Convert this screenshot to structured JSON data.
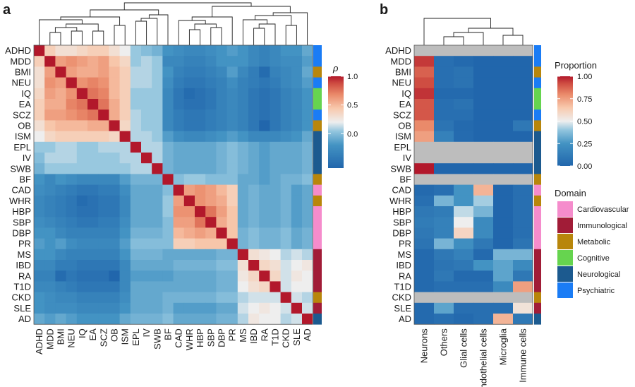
{
  "panels": {
    "a": "a",
    "b": "b"
  },
  "chart_data": [
    {
      "type": "heatmap",
      "panel": "a",
      "traits": [
        "ADHD",
        "MDD",
        "BMI",
        "NEU",
        "IQ",
        "EA",
        "SCZ",
        "OB",
        "ISM",
        "EPL",
        "IV",
        "SWB",
        "BF",
        "CAD",
        "WHR",
        "HBP",
        "SBP",
        "DBP",
        "PR",
        "MS",
        "IBD",
        "RA",
        "T1D",
        "CKD",
        "SLE",
        "AD"
      ],
      "values": [
        [
          1.0,
          0.4,
          0.3,
          0.3,
          0.35,
          0.4,
          0.4,
          0.3,
          0.2,
          0.05,
          0.0,
          -0.05,
          -0.2,
          -0.25,
          -0.3,
          -0.3,
          -0.25,
          -0.2,
          -0.15,
          -0.2,
          -0.3,
          -0.35,
          -0.3,
          -0.2,
          -0.2,
          -0.1
        ],
        [
          0.4,
          1.0,
          0.6,
          0.65,
          0.6,
          0.55,
          0.6,
          0.45,
          0.35,
          0.05,
          0.1,
          0.05,
          -0.3,
          -0.3,
          -0.35,
          -0.35,
          -0.3,
          -0.2,
          -0.2,
          -0.2,
          -0.3,
          -0.35,
          -0.3,
          -0.25,
          -0.25,
          -0.15
        ],
        [
          0.3,
          0.6,
          1.0,
          0.6,
          0.55,
          0.55,
          0.6,
          0.5,
          0.4,
          0.1,
          0.1,
          0.05,
          -0.2,
          -0.35,
          -0.4,
          -0.4,
          -0.35,
          -0.3,
          -0.15,
          -0.3,
          -0.4,
          -0.55,
          -0.35,
          -0.3,
          -0.25,
          -0.1
        ],
        [
          0.3,
          0.65,
          0.6,
          1.0,
          0.65,
          0.7,
          0.65,
          0.5,
          0.4,
          0.1,
          0.1,
          0.05,
          -0.25,
          -0.4,
          -0.45,
          -0.45,
          -0.4,
          -0.35,
          -0.25,
          -0.35,
          -0.4,
          -0.45,
          -0.4,
          -0.3,
          -0.25,
          -0.15
        ],
        [
          0.35,
          0.6,
          0.55,
          0.65,
          1.0,
          0.75,
          0.7,
          0.5,
          0.4,
          0.05,
          0.05,
          0.05,
          -0.3,
          -0.45,
          -0.55,
          -0.5,
          -0.45,
          -0.35,
          -0.3,
          -0.35,
          -0.45,
          -0.5,
          -0.45,
          -0.35,
          -0.3,
          -0.2
        ],
        [
          0.4,
          0.55,
          0.55,
          0.7,
          0.75,
          1.0,
          0.75,
          0.55,
          0.4,
          0.05,
          0.05,
          0.05,
          -0.3,
          -0.45,
          -0.5,
          -0.5,
          -0.45,
          -0.35,
          -0.3,
          -0.35,
          -0.45,
          -0.5,
          -0.45,
          -0.35,
          -0.3,
          -0.2
        ],
        [
          0.4,
          0.6,
          0.6,
          0.65,
          0.7,
          0.75,
          1.0,
          0.55,
          0.4,
          0.1,
          0.05,
          0.05,
          -0.3,
          -0.4,
          -0.45,
          -0.45,
          -0.4,
          -0.35,
          -0.3,
          -0.35,
          -0.45,
          -0.5,
          -0.45,
          -0.35,
          -0.3,
          -0.2
        ],
        [
          0.3,
          0.45,
          0.5,
          0.5,
          0.5,
          0.55,
          0.55,
          1.0,
          0.35,
          0.1,
          0.05,
          0.05,
          -0.3,
          -0.4,
          -0.45,
          -0.45,
          -0.4,
          -0.35,
          -0.3,
          -0.35,
          -0.45,
          -0.6,
          -0.45,
          -0.35,
          -0.3,
          -0.2
        ],
        [
          0.2,
          0.35,
          0.4,
          0.4,
          0.4,
          0.4,
          0.4,
          0.35,
          1.0,
          0.1,
          0.1,
          0.05,
          -0.15,
          -0.25,
          -0.3,
          -0.3,
          -0.25,
          -0.2,
          -0.15,
          -0.2,
          -0.3,
          -0.3,
          -0.3,
          -0.25,
          -0.2,
          -0.1
        ],
        [
          0.05,
          0.05,
          0.1,
          0.1,
          0.05,
          0.05,
          0.1,
          0.1,
          0.1,
          1.0,
          0.1,
          0.1,
          -0.05,
          -0.1,
          -0.1,
          -0.1,
          -0.1,
          -0.05,
          0.0,
          -0.05,
          -0.1,
          -0.15,
          -0.1,
          -0.1,
          -0.1,
          -0.05
        ],
        [
          0.0,
          0.1,
          0.1,
          0.1,
          0.05,
          0.05,
          0.05,
          0.05,
          0.1,
          0.1,
          1.0,
          0.1,
          -0.05,
          -0.1,
          -0.1,
          -0.1,
          -0.1,
          -0.05,
          0.0,
          -0.05,
          -0.1,
          -0.15,
          -0.1,
          -0.1,
          -0.1,
          -0.05
        ],
        [
          -0.05,
          0.05,
          0.05,
          0.05,
          0.05,
          0.05,
          0.05,
          0.05,
          0.05,
          0.1,
          0.1,
          1.0,
          -0.05,
          -0.1,
          -0.1,
          -0.1,
          -0.1,
          -0.05,
          0.0,
          -0.05,
          -0.1,
          -0.15,
          -0.1,
          -0.1,
          -0.1,
          -0.05
        ],
        [
          -0.2,
          -0.3,
          -0.2,
          -0.25,
          -0.3,
          -0.3,
          -0.3,
          -0.3,
          -0.15,
          -0.05,
          -0.05,
          -0.05,
          1.0,
          0.0,
          0.05,
          0.05,
          0.0,
          0.0,
          0.0,
          -0.1,
          -0.1,
          -0.15,
          -0.1,
          -0.05,
          -0.05,
          0.0
        ],
        [
          -0.25,
          -0.3,
          -0.35,
          -0.4,
          -0.45,
          -0.45,
          -0.4,
          -0.4,
          -0.25,
          -0.1,
          -0.1,
          -0.1,
          0.0,
          1.0,
          0.6,
          0.65,
          0.6,
          0.5,
          0.4,
          -0.1,
          -0.05,
          -0.1,
          -0.1,
          -0.05,
          -0.15,
          -0.1
        ],
        [
          -0.3,
          -0.35,
          -0.4,
          -0.45,
          -0.55,
          -0.5,
          -0.45,
          -0.45,
          -0.3,
          -0.1,
          -0.1,
          -0.1,
          0.05,
          0.6,
          1.0,
          0.65,
          0.6,
          0.55,
          0.4,
          -0.1,
          -0.05,
          -0.1,
          -0.1,
          -0.05,
          -0.15,
          -0.1
        ],
        [
          -0.3,
          -0.35,
          -0.4,
          -0.45,
          -0.5,
          -0.5,
          -0.45,
          -0.45,
          -0.3,
          -0.1,
          -0.1,
          -0.1,
          0.05,
          0.65,
          0.65,
          1.0,
          0.75,
          0.6,
          0.45,
          -0.1,
          -0.05,
          -0.1,
          -0.1,
          -0.05,
          -0.15,
          -0.1
        ],
        [
          -0.25,
          -0.3,
          -0.35,
          -0.4,
          -0.45,
          -0.45,
          -0.4,
          -0.4,
          -0.25,
          -0.1,
          -0.1,
          -0.1,
          0.0,
          0.6,
          0.6,
          0.75,
          1.0,
          0.55,
          0.45,
          -0.1,
          -0.05,
          -0.1,
          -0.1,
          -0.05,
          -0.15,
          -0.1
        ],
        [
          -0.2,
          -0.2,
          -0.3,
          -0.35,
          -0.35,
          -0.35,
          -0.35,
          -0.35,
          -0.2,
          -0.05,
          -0.05,
          -0.05,
          0.0,
          0.5,
          0.55,
          0.6,
          0.55,
          1.0,
          0.45,
          -0.05,
          0.0,
          -0.05,
          -0.05,
          0.0,
          -0.1,
          -0.05
        ],
        [
          -0.15,
          -0.2,
          -0.15,
          -0.25,
          -0.3,
          -0.3,
          -0.3,
          -0.3,
          -0.15,
          0.0,
          0.0,
          0.0,
          0.0,
          0.4,
          0.4,
          0.45,
          0.45,
          0.45,
          1.0,
          -0.05,
          0.0,
          -0.05,
          -0.05,
          0.0,
          -0.1,
          -0.05
        ],
        [
          -0.2,
          -0.2,
          -0.3,
          -0.35,
          -0.35,
          -0.35,
          -0.35,
          -0.35,
          -0.2,
          -0.05,
          -0.05,
          -0.05,
          -0.1,
          -0.1,
          -0.1,
          -0.1,
          -0.1,
          -0.05,
          -0.05,
          1.0,
          0.3,
          0.25,
          0.2,
          0.1,
          0.15,
          0.1
        ],
        [
          -0.3,
          -0.3,
          -0.4,
          -0.4,
          -0.45,
          -0.45,
          -0.45,
          -0.45,
          -0.3,
          -0.1,
          -0.1,
          -0.1,
          -0.1,
          -0.05,
          -0.05,
          -0.05,
          -0.05,
          0.0,
          0.0,
          0.3,
          1.0,
          0.35,
          0.3,
          0.15,
          0.2,
          0.25
        ],
        [
          -0.35,
          -0.35,
          -0.55,
          -0.45,
          -0.5,
          -0.5,
          -0.5,
          -0.6,
          -0.3,
          -0.15,
          -0.15,
          -0.15,
          -0.15,
          -0.1,
          -0.1,
          -0.1,
          -0.1,
          -0.05,
          -0.05,
          0.25,
          0.35,
          1.0,
          0.35,
          0.15,
          0.25,
          0.2
        ],
        [
          -0.3,
          -0.3,
          -0.35,
          -0.4,
          -0.45,
          -0.45,
          -0.45,
          -0.45,
          -0.3,
          -0.1,
          -0.1,
          -0.1,
          -0.1,
          -0.1,
          -0.1,
          -0.1,
          -0.1,
          -0.05,
          -0.05,
          0.2,
          0.3,
          0.35,
          1.0,
          0.15,
          0.2,
          0.2
        ],
        [
          -0.2,
          -0.25,
          -0.3,
          -0.3,
          -0.35,
          -0.35,
          -0.35,
          -0.35,
          -0.25,
          -0.1,
          -0.1,
          -0.1,
          -0.05,
          -0.05,
          -0.05,
          -0.05,
          -0.05,
          0.0,
          0.0,
          0.1,
          0.15,
          0.15,
          0.15,
          1.0,
          0.15,
          0.1
        ],
        [
          -0.2,
          -0.25,
          -0.25,
          -0.25,
          -0.3,
          -0.3,
          -0.3,
          -0.3,
          -0.2,
          -0.1,
          -0.1,
          -0.1,
          -0.05,
          -0.15,
          -0.15,
          -0.15,
          -0.15,
          -0.1,
          -0.1,
          0.15,
          0.2,
          0.25,
          0.2,
          0.15,
          1.0,
          0.15
        ],
        [
          -0.1,
          -0.15,
          -0.1,
          -0.15,
          -0.2,
          -0.2,
          -0.2,
          -0.2,
          -0.1,
          -0.05,
          -0.05,
          -0.05,
          0.0,
          -0.1,
          -0.1,
          -0.1,
          -0.1,
          -0.05,
          -0.05,
          0.1,
          0.25,
          0.2,
          0.2,
          0.1,
          0.15,
          1.0
        ]
      ],
      "domains": [
        "Psychiatric",
        "Psychiatric",
        "Metabolic",
        "Psychiatric",
        "Cognitive",
        "Cognitive",
        "Psychiatric",
        "Metabolic",
        "Neurological",
        "Neurological",
        "Neurological",
        "Neurological",
        "Metabolic",
        "Cardiovascular",
        "Metabolic",
        "Cardiovascular",
        "Cardiovascular",
        "Cardiovascular",
        "Cardiovascular",
        "Immunological",
        "Immunological",
        "Immunological",
        "Immunological",
        "Metabolic",
        "Immunological",
        "Neurological"
      ],
      "colorbar": {
        "title": "ρ",
        "ticks": [
          1.0,
          0.5,
          0.0
        ],
        "tick_labels": [
          "1.0",
          "0.5",
          "0.0"
        ],
        "range": [
          -0.6,
          1.0
        ]
      }
    },
    {
      "type": "heatmap",
      "panel": "b",
      "traits": [
        "ADHD",
        "MDD",
        "BMI",
        "NEU",
        "IQ",
        "EA",
        "SCZ",
        "OB",
        "ISM",
        "EPL",
        "IV",
        "SWB",
        "BF",
        "CAD",
        "WHR",
        "HBP",
        "SBP",
        "DBP",
        "PR",
        "MS",
        "IBD",
        "RA",
        "T1D",
        "CKD",
        "SLE",
        "AD"
      ],
      "cell_types": [
        "Neurons",
        "Others",
        "Glial cells",
        "Endothelial cells",
        "Microglia",
        "Immune cells"
      ],
      "values": [
        [
          null,
          null,
          null,
          null,
          null,
          null
        ],
        [
          0.95,
          0.05,
          0.02,
          0.0,
          0.0,
          0.0
        ],
        [
          0.88,
          0.05,
          0.07,
          0.0,
          0.0,
          0.0
        ],
        [
          0.92,
          0.05,
          0.07,
          0.0,
          0.0,
          0.0
        ],
        [
          0.96,
          0.02,
          0.02,
          0.0,
          0.0,
          0.0
        ],
        [
          0.9,
          0.05,
          0.07,
          0.0,
          0.0,
          0.0
        ],
        [
          0.9,
          0.05,
          0.05,
          0.0,
          0.0,
          0.0
        ],
        [
          0.8,
          0.08,
          0.02,
          0.0,
          0.0,
          0.1
        ],
        [
          0.75,
          0.15,
          0.03,
          0.0,
          0.0,
          0.0
        ],
        [
          null,
          null,
          null,
          null,
          null,
          null
        ],
        [
          null,
          null,
          null,
          null,
          null,
          null
        ],
        [
          1.0,
          0.0,
          0.0,
          0.0,
          0.0,
          0.0
        ],
        [
          null,
          null,
          null,
          null,
          null,
          null
        ],
        [
          0.02,
          0.05,
          0.25,
          0.7,
          0.0,
          0.05
        ],
        [
          0.05,
          0.35,
          0.25,
          0.42,
          0.0,
          0.05
        ],
        [
          0.1,
          0.12,
          0.45,
          0.35,
          0.0,
          0.05
        ],
        [
          0.12,
          0.15,
          0.5,
          0.2,
          0.0,
          0.05
        ],
        [
          0.1,
          0.15,
          0.6,
          0.2,
          0.0,
          0.05
        ],
        [
          0.08,
          0.35,
          0.22,
          0.1,
          0.0,
          0.08
        ],
        [
          0.02,
          0.1,
          0.15,
          0.02,
          0.35,
          0.35
        ],
        [
          0.02,
          0.08,
          0.1,
          0.25,
          0.3,
          0.2
        ],
        [
          0.02,
          0.1,
          0.02,
          0.02,
          0.3,
          0.1
        ],
        [
          0.02,
          0.05,
          0.05,
          0.05,
          0.2,
          0.75
        ],
        [
          null,
          null,
          null,
          null,
          null,
          null
        ],
        [
          0.02,
          0.3,
          0.05,
          0.05,
          0.05,
          0.55
        ],
        [
          0.02,
          0.05,
          0.02,
          0.05,
          0.7,
          0.1
        ]
      ],
      "domains": [
        "Psychiatric",
        "Psychiatric",
        "Metabolic",
        "Psychiatric",
        "Cognitive",
        "Cognitive",
        "Psychiatric",
        "Metabolic",
        "Neurological",
        "Neurological",
        "Neurological",
        "Neurological",
        "Metabolic",
        "Cardiovascular",
        "Metabolic",
        "Cardiovascular",
        "Cardiovascular",
        "Cardiovascular",
        "Cardiovascular",
        "Immunological",
        "Immunological",
        "Immunological",
        "Immunological",
        "Metabolic",
        "Immunological",
        "Neurological"
      ],
      "colorbar": {
        "title": "Proportion",
        "ticks": [
          1.0,
          0.75,
          0.5,
          0.25,
          0.0
        ],
        "tick_labels": [
          "1.00",
          "0.75",
          "0.50",
          "0.25",
          "0.00"
        ],
        "range": [
          0,
          1
        ]
      },
      "legend": {
        "title": "Domain",
        "entries": [
          {
            "name": "Cardiovascular",
            "color": "#f58ccc"
          },
          {
            "name": "Immunological",
            "color": "#a11c37"
          },
          {
            "name": "Metabolic",
            "color": "#b8860b"
          },
          {
            "name": "Cognitive",
            "color": "#66d44f"
          },
          {
            "name": "Neurological",
            "color": "#1c5a8f"
          },
          {
            "name": "Psychiatric",
            "color": "#1a7cf5"
          }
        ]
      },
      "na_color": "#bdbdbd"
    }
  ]
}
